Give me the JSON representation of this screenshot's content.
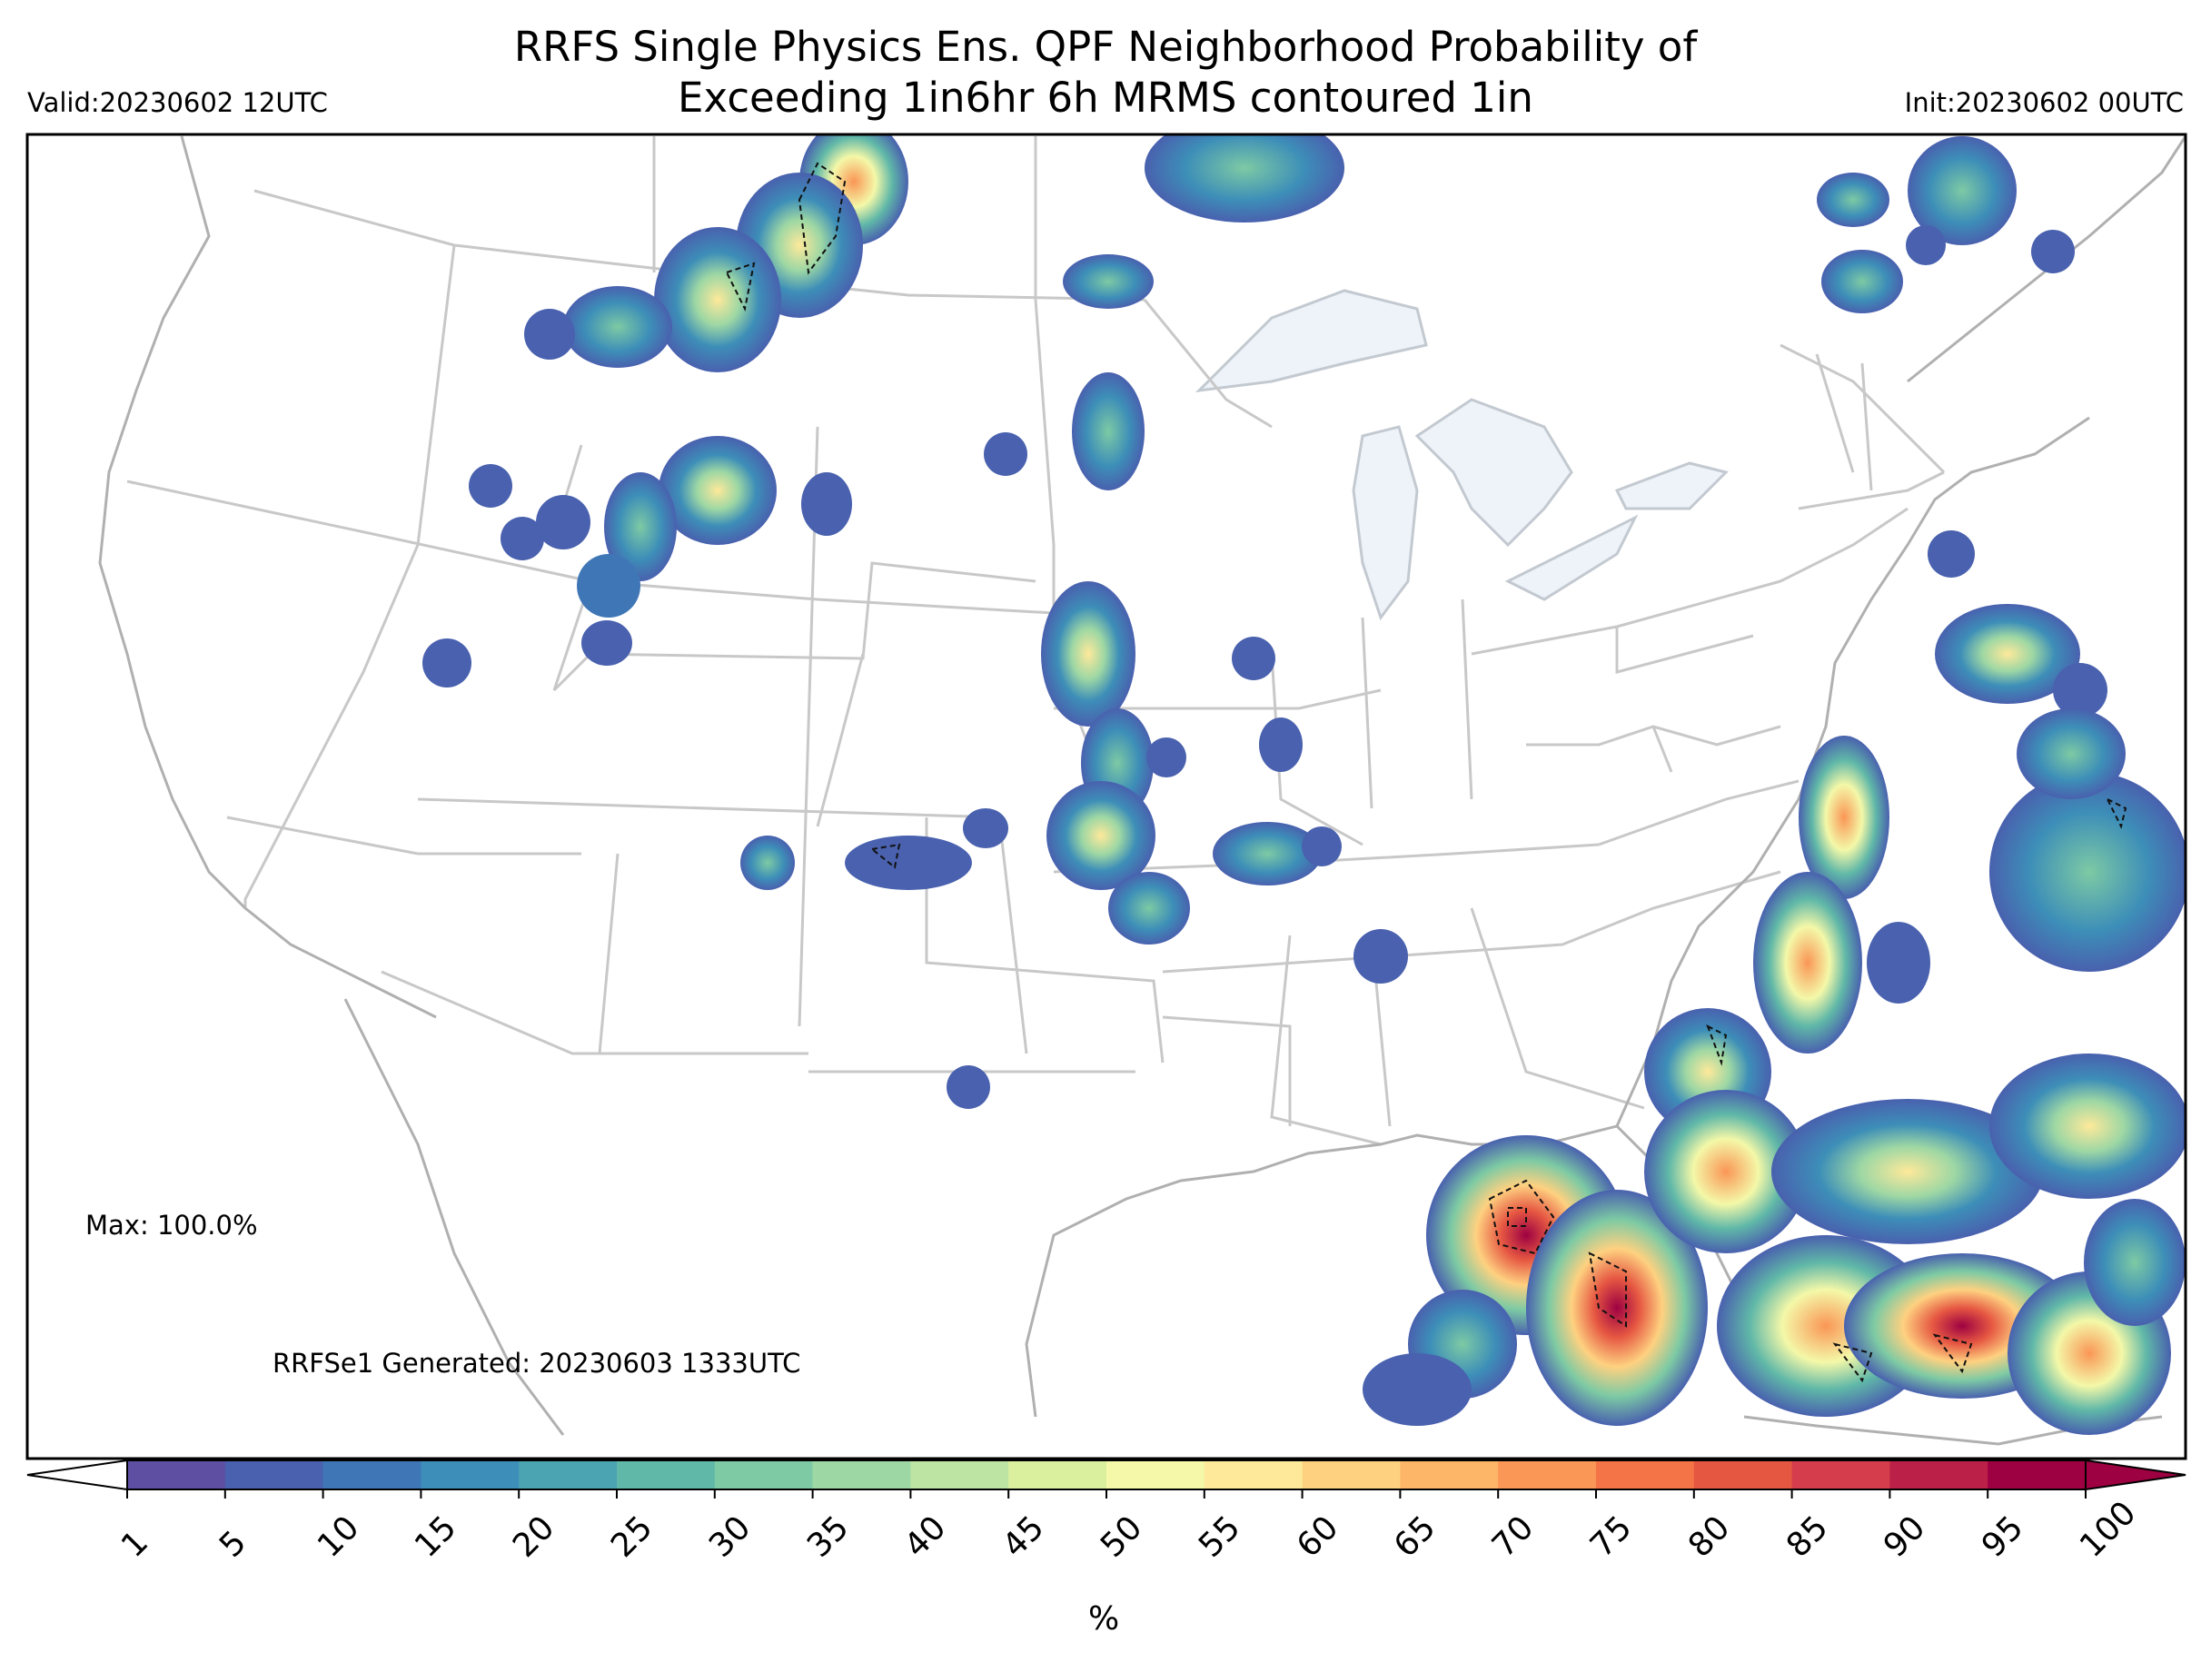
{
  "title_line1": "RRFS Single Physics Ens. QPF Neighborhood Probability of",
  "title_line2": "Exceeding 1in6hr 6h MRMS contoured 1in",
  "valid": "Valid:20230602 12UTC",
  "init": "Init:20230602 00UTC",
  "max_label": "Max: 100.0%",
  "generated_label": "RRFSe1 Generated: 20230603 1333UTC",
  "colorbar": {
    "unit": "%",
    "ticks": [
      "1",
      "5",
      "10",
      "15",
      "20",
      "25",
      "30",
      "35",
      "40",
      "45",
      "50",
      "55",
      "60",
      "65",
      "70",
      "75",
      "80",
      "85",
      "90",
      "95",
      "100"
    ],
    "colors": [
      "#5e4fa2",
      "#4961ae",
      "#3f77b6",
      "#3d8eb8",
      "#4ba4b2",
      "#60b8a8",
      "#7dcaa4",
      "#9dd7a4",
      "#bde4a3",
      "#dbf09f",
      "#f4f8a8",
      "#fee99a",
      "#fed180",
      "#fdb567",
      "#fa9656",
      "#f57447",
      "#e65742",
      "#d63d4c",
      "#bb2049",
      "#9e0142"
    ]
  },
  "map": {
    "projection": "lambert-conformal-conus",
    "features": [
      "state-borders",
      "country-borders",
      "coastlines",
      "great-lakes"
    ],
    "probability_field": "qpf-neighborhood-probability",
    "contour": "mrms-1in-dashed"
  }
}
